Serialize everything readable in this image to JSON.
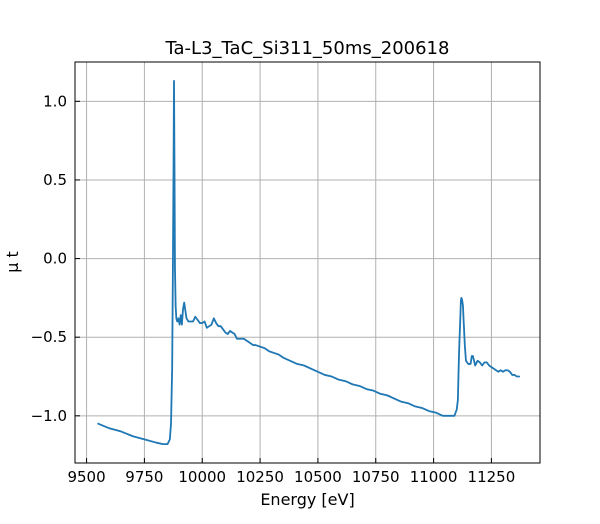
{
  "chart_data": {
    "type": "line",
    "title": "Ta-L3_TaC_Si311_50ms_200618",
    "xlabel": "Energy [eV]",
    "ylabel": "μ t",
    "xlim": [
      9450,
      11460
    ],
    "ylim": [
      -1.3,
      1.25
    ],
    "xticks": [
      9500,
      9750,
      10000,
      10250,
      10500,
      10750,
      11000,
      11250
    ],
    "xtick_labels": [
      "9500",
      "9750",
      "10000",
      "10250",
      "10500",
      "10750",
      "11000",
      "11250"
    ],
    "yticks": [
      -1.0,
      -0.5,
      0.0,
      0.5,
      1.0
    ],
    "ytick_labels": [
      "−1.0",
      "−0.5",
      "0.0",
      "0.5",
      "1.0"
    ],
    "grid": true,
    "colors": {
      "line": "#1f77b4",
      "grid": "#b0b0b0",
      "axes": "#000000"
    },
    "series": [
      {
        "x": [
          9550,
          9600,
          9650,
          9700,
          9750,
          9800,
          9830,
          9850,
          9860,
          9865,
          9870,
          9873,
          9876,
          9878,
          9880,
          9882,
          9885,
          9888,
          9892,
          9897,
          9902,
          9907,
          9912,
          9917,
          9922,
          9927,
          9932,
          9940,
          9950,
          9960,
          9970,
          9980,
          9990,
          10000,
          10010,
          10020,
          10030,
          10040,
          10050,
          10060,
          10070,
          10080,
          10090,
          10100,
          10110,
          10120,
          10130,
          10140,
          10150,
          10160,
          10170,
          10180,
          10190,
          10200,
          10210,
          10220,
          10230,
          10250,
          10270,
          10290,
          10310,
          10330,
          10350,
          10380,
          10410,
          10440,
          10470,
          10500,
          10530,
          10560,
          10590,
          10620,
          10650,
          10680,
          10710,
          10740,
          10770,
          10800,
          10830,
          10860,
          10890,
          10920,
          10950,
          10980,
          11010,
          11040,
          11070,
          11090,
          11100,
          11105,
          11110,
          11115,
          11118,
          11120,
          11123,
          11127,
          11130,
          11135,
          11140,
          11150,
          11160,
          11165,
          11170,
          11180,
          11190,
          11200,
          11210,
          11220,
          11230,
          11240,
          11250,
          11260,
          11270,
          11280,
          11290,
          11300,
          11310,
          11320,
          11330,
          11340,
          11350,
          11360,
          11370
        ],
        "y": [
          -1.05,
          -1.08,
          -1.1,
          -1.13,
          -1.15,
          -1.17,
          -1.18,
          -1.18,
          -1.15,
          -1.05,
          -0.7,
          -0.1,
          0.6,
          1.13,
          0.6,
          -0.05,
          -0.3,
          -0.38,
          -0.4,
          -0.38,
          -0.42,
          -0.36,
          -0.42,
          -0.32,
          -0.28,
          -0.33,
          -0.38,
          -0.4,
          -0.4,
          -0.4,
          -0.37,
          -0.39,
          -0.41,
          -0.41,
          -0.4,
          -0.44,
          -0.43,
          -0.42,
          -0.38,
          -0.41,
          -0.43,
          -0.43,
          -0.45,
          -0.47,
          -0.48,
          -0.46,
          -0.47,
          -0.48,
          -0.51,
          -0.51,
          -0.51,
          -0.51,
          -0.52,
          -0.53,
          -0.54,
          -0.55,
          -0.55,
          -0.56,
          -0.57,
          -0.59,
          -0.6,
          -0.61,
          -0.63,
          -0.65,
          -0.67,
          -0.68,
          -0.7,
          -0.72,
          -0.74,
          -0.75,
          -0.77,
          -0.78,
          -0.8,
          -0.81,
          -0.83,
          -0.84,
          -0.86,
          -0.87,
          -0.89,
          -0.91,
          -0.92,
          -0.94,
          -0.95,
          -0.97,
          -0.98,
          -1.0,
          -1.0,
          -1.0,
          -0.96,
          -0.9,
          -0.6,
          -0.4,
          -0.27,
          -0.25,
          -0.26,
          -0.3,
          -0.4,
          -0.55,
          -0.65,
          -0.67,
          -0.67,
          -0.62,
          -0.62,
          -0.68,
          -0.65,
          -0.66,
          -0.68,
          -0.66,
          -0.66,
          -0.68,
          -0.69,
          -0.7,
          -0.71,
          -0.72,
          -0.71,
          -0.72,
          -0.71,
          -0.71,
          -0.72,
          -0.74,
          -0.74,
          -0.75,
          -0.75
        ]
      }
    ]
  }
}
